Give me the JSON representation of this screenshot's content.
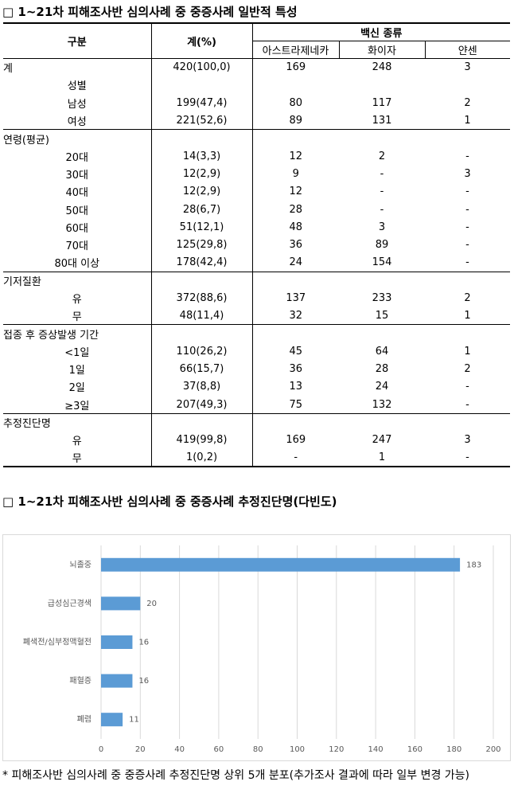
{
  "title": "□ 1~21차 피해조사반 심의사례 중 중증사례 일반적 특성",
  "table": {
    "header": {
      "category": "구분",
      "total": "계(%)",
      "vaccine": "백신 종류",
      "vaccines": [
        "아스트라제네카",
        "화이자",
        "얀센"
      ]
    },
    "groups": [
      [
        [
          "계",
          "420(100,0)",
          "169",
          "248",
          "3"
        ],
        [
          "성별"
        ],
        [
          "남성",
          "199(47,4)",
          "80",
          "117",
          "2"
        ],
        [
          "여성",
          "221(52,6)",
          "89",
          "131",
          "1"
        ]
      ],
      [
        [
          "연령(평균)"
        ],
        [
          "20대",
          "14(3,3)",
          "12",
          "2",
          "-"
        ],
        [
          "30대",
          "12(2,9)",
          "9",
          "-",
          "3"
        ],
        [
          "40대",
          "12(2,9)",
          "12",
          "-",
          "-"
        ],
        [
          "50대",
          "28(6,7)",
          "28",
          "-",
          "-"
        ],
        [
          "60대",
          "51(12,1)",
          "48",
          "3",
          "-"
        ],
        [
          "70대",
          "125(29,8)",
          "36",
          "89",
          "-"
        ],
        [
          "80대 이상",
          "178(42,4)",
          "24",
          "154",
          "-"
        ]
      ],
      [
        [
          "기저질환"
        ],
        [
          "유",
          "372(88,6)",
          "137",
          "233",
          "2"
        ],
        [
          "무",
          "48(11,4)",
          "32",
          "15",
          "1"
        ]
      ],
      [
        [
          "접종 후 증상발생 기간"
        ],
        [
          "<1일",
          "110(26,2)",
          "45",
          "64",
          "1"
        ],
        [
          "1일",
          "66(15,7)",
          "36",
          "28",
          "2"
        ],
        [
          "2일",
          "37(8,8)",
          "13",
          "24",
          "-"
        ],
        [
          "≥3일",
          "207(49,3)",
          "75",
          "132",
          "-"
        ]
      ],
      [
        [
          "추정진단명"
        ],
        [
          "유",
          "419(99,8)",
          "169",
          "247",
          "3"
        ],
        [
          "무",
          "1(0,2)",
          "-",
          "1",
          "-"
        ]
      ]
    ]
  },
  "chart_title": "□ 1~21차 피해조사반 심의사례 중 중증사례 추정진단명(다빈도)",
  "chart_data": {
    "type": "bar",
    "orientation": "horizontal",
    "categories": [
      "뇌졸중",
      "급성심근경색",
      "폐색전/심부정맥혈전",
      "패혈증",
      "폐렴"
    ],
    "values": [
      183,
      20,
      16,
      16,
      11
    ],
    "color": "#5b9bd5",
    "xlim": [
      0,
      200
    ],
    "xticks": [
      0,
      20,
      40,
      60,
      80,
      100,
      120,
      140,
      160,
      180,
      200
    ],
    "grid": true,
    "data_labels": true
  },
  "footnote": "* 피해조사반 심의사례 중 중증사례 추정진단명 상위 5개 분포(추가조사 결과에 따라 일부 변경 가능)"
}
